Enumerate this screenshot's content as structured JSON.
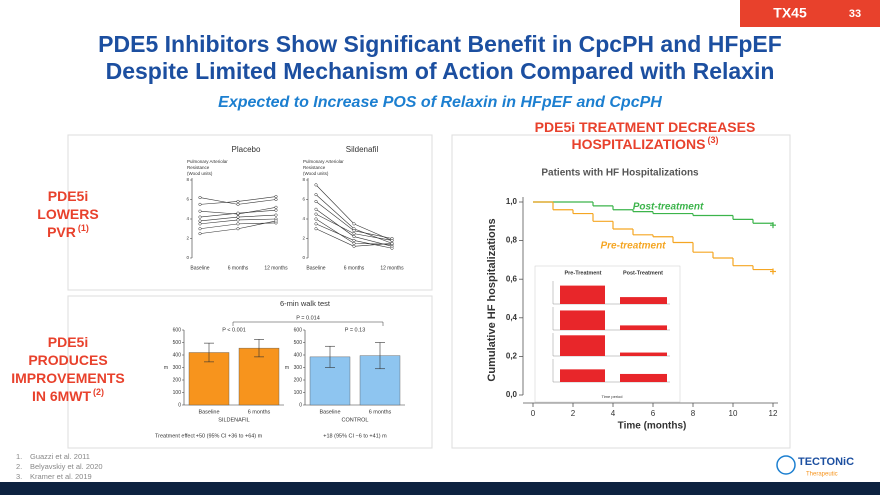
{
  "header": {
    "badge": "TX45",
    "page_number": "33",
    "title_lines": [
      "PDE5 Inhibitors Show Significant Benefit in CpcPH and HFpEF",
      "Despite Limited Mechanism of Action Compared with Relaxin"
    ],
    "subtitle": "Expected to Increase POS of Relaxin in HFpEF and CpcPH"
  },
  "left_labels": [
    {
      "lines": [
        "PDE5i",
        "LOWERS",
        "PVR"
      ],
      "ref": "(1)"
    },
    {
      "lines": [
        "PDE5i",
        "PRODUCES",
        "IMPROVEMENTS",
        "IN 6MWT"
      ],
      "ref": "(2)"
    }
  ],
  "right_header": {
    "lines": [
      "PDE5i TREATMENT DECREASES",
      "HOSPITALIZATIONS"
    ],
    "ref": "(3)"
  },
  "pvr_chart": {
    "type": "line",
    "y_label_lines": [
      "Pulmonary Arteriolar",
      "Resistance",
      "(Wood units)"
    ],
    "categories": [
      "Baseline",
      "6 months",
      "12 months"
    ],
    "ylim": [
      0,
      8
    ],
    "yticks": [
      0,
      2,
      4,
      6,
      8
    ],
    "panels": [
      {
        "name": "Placebo",
        "series": [
          [
            6.2,
            5.5,
            6.0
          ],
          [
            5.5,
            5.8,
            6.3
          ],
          [
            4.8,
            4.5,
            5.2
          ],
          [
            4.2,
            4.6,
            4.9
          ],
          [
            3.8,
            4.2,
            4.4
          ],
          [
            3.5,
            3.9,
            4.0
          ],
          [
            3.0,
            3.5,
            3.6
          ],
          [
            2.5,
            3.0,
            3.8
          ]
        ]
      },
      {
        "name": "Sildenafil",
        "series": [
          [
            7.5,
            3.5,
            1.8
          ],
          [
            6.5,
            3.0,
            1.5
          ],
          [
            5.8,
            2.8,
            2.0
          ],
          [
            5.0,
            2.2,
            1.2
          ],
          [
            4.5,
            2.5,
            1.8
          ],
          [
            4.0,
            1.5,
            1.4
          ],
          [
            3.5,
            1.8,
            1.0
          ],
          [
            3.0,
            1.2,
            1.5
          ]
        ]
      }
    ]
  },
  "walk_chart": {
    "type": "bar",
    "title": "6-min walk test",
    "overall_p": "P = 0.014",
    "y_label": "m",
    "ylim": [
      0,
      600
    ],
    "yticks": [
      0,
      100,
      200,
      300,
      400,
      500,
      600
    ],
    "effect_label": "Treatment effect",
    "panels": [
      {
        "name": "SILDENAFIL",
        "p": "P < 0.001",
        "color": "#f7941d",
        "categories": [
          "Baseline",
          "6 months"
        ],
        "values": [
          420,
          455
        ],
        "errors": [
          75,
          70
        ],
        "effect": "+50 (95% CI +36 to +64) m"
      },
      {
        "name": "CONTROL",
        "p": "P = 0.13",
        "color": "#8ec5f0",
        "categories": [
          "Baseline",
          "6 months"
        ],
        "values": [
          385,
          395
        ],
        "errors": [
          85,
          105
        ],
        "effect": "+18 (95% CI −6 to +41) m"
      }
    ]
  },
  "km_chart": {
    "type": "line",
    "title": "Patients with HF Hospitalizations",
    "y_label": "Cumulative HF hospitalizations",
    "x_label": "Time (months)",
    "xlim": [
      0,
      12
    ],
    "xticks": [
      0,
      2,
      4,
      6,
      8,
      10,
      12
    ],
    "ylim": [
      0,
      1
    ],
    "yticks": [
      {
        "value": 0,
        "label": "0,0"
      },
      {
        "value": 0.2,
        "label": "0,2"
      },
      {
        "value": 0.4,
        "label": "0,4"
      },
      {
        "value": 0.6,
        "label": "0,6"
      },
      {
        "value": 0.8,
        "label": "0,8"
      },
      {
        "value": 1,
        "label": "1,0"
      }
    ],
    "series": [
      {
        "name": "Post-treatment",
        "color": "#3cb44b",
        "x": [
          0,
          1.5,
          3,
          4,
          5,
          6,
          8,
          10,
          11,
          12
        ],
        "values": [
          1,
          1,
          0.98,
          0.96,
          0.95,
          0.94,
          0.93,
          0.91,
          0.89,
          0.88
        ]
      },
      {
        "name": "Pre-treatment",
        "color": "#f5a623",
        "x": [
          0,
          1,
          2,
          3,
          4,
          5,
          6,
          7,
          8,
          9,
          10,
          11,
          12
        ],
        "values": [
          1,
          0.96,
          0.94,
          0.9,
          0.86,
          0.83,
          0.82,
          0.79,
          0.74,
          0.71,
          0.67,
          0.65,
          0.64
        ]
      }
    ],
    "inset": {
      "type": "bar",
      "categories": [
        "Pre-Treatment",
        "Post-Treatment"
      ],
      "x_label": "Time period",
      "ylim": [
        0,
        1
      ],
      "rows": [
        [
          0.8,
          0.3
        ],
        [
          0.85,
          0.2
        ],
        [
          0.9,
          0.15
        ],
        [
          0.55,
          0.35
        ]
      ],
      "color": "#e8262a"
    }
  },
  "footnotes": [
    "Guazzi et al. 2011",
    "Belyavskiy et al. 2020",
    "Kramer et al. 2019"
  ],
  "logo": {
    "name": "TECTONiC",
    "tagline": "Therapeutic"
  }
}
